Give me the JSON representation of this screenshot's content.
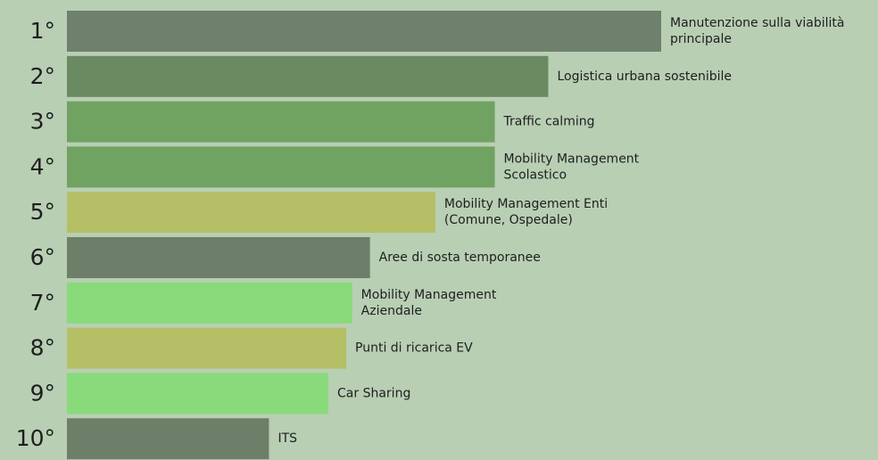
{
  "chart_data": {
    "type": "bar",
    "orientation": "horizontal",
    "categories": [
      "1°",
      "2°",
      "3°",
      "4°",
      "5°",
      "6°",
      "7°",
      "8°",
      "9°",
      "10°"
    ],
    "labels": [
      [
        "Manutenzione sulla viabilità",
        "principale"
      ],
      [
        "Logistica urbana sostenibile"
      ],
      [
        "Traffic calming"
      ],
      [
        "Mobility Management",
        "Scolastico"
      ],
      [
        "Mobility Management Enti",
        "(Comune, Ospedale)"
      ],
      [
        "Aree di sosta temporanee"
      ],
      [
        "Mobility Management",
        "Aziendale"
      ],
      [
        "Punti di ricarica EV"
      ],
      [
        "Car Sharing"
      ],
      [
        "ITS"
      ]
    ],
    "values": [
      100,
      81,
      72,
      72,
      62,
      51,
      48,
      47,
      44,
      34
    ],
    "colors": [
      "#6f806c",
      "#6a8a62",
      "#70a262",
      "#70a262",
      "#b5bf66",
      "#6d7f69",
      "#89da7b",
      "#b5bf66",
      "#89da7b",
      "#6d7f69"
    ]
  }
}
